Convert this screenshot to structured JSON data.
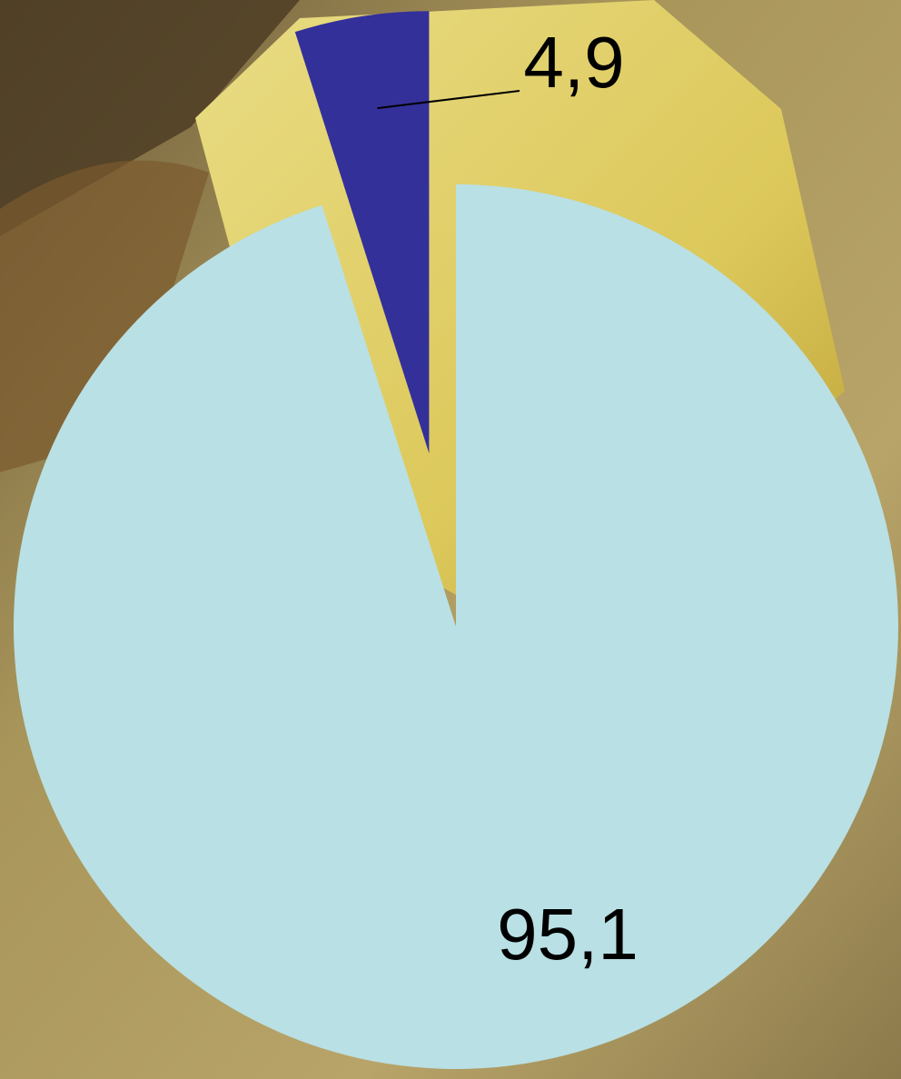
{
  "chart_data": {
    "type": "pie",
    "values": [
      95.1,
      4.9
    ],
    "value_labels": [
      "95,1",
      "4,9"
    ],
    "colors": [
      "#b9e0e4",
      "#34309a"
    ]
  }
}
